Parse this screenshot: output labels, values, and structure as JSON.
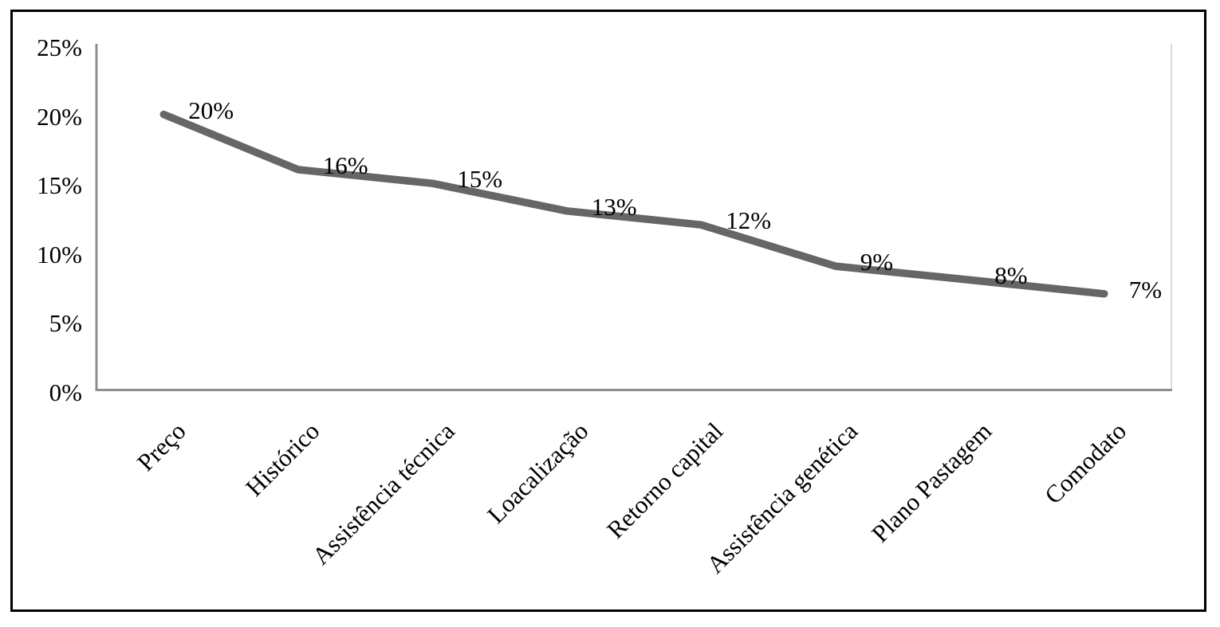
{
  "chart_data": {
    "type": "line",
    "title": "",
    "categories": [
      "Preço",
      "Histórico",
      "Assistência técnica",
      "Loacalização",
      "Retorno capital",
      "Assistência genética",
      "Plano Pastagem",
      "Comodato"
    ],
    "values": [
      20,
      16,
      15,
      13,
      12,
      9,
      8,
      7
    ],
    "data_labels": [
      "20%",
      "16%",
      "15%",
      "13%",
      "12%",
      "9%",
      "8%",
      "7%"
    ],
    "ytick_values": [
      0,
      5,
      10,
      15,
      20,
      25
    ],
    "ytick_labels": [
      "0%",
      "5%",
      "10%",
      "15%",
      "20%",
      "25%"
    ],
    "ylim": [
      0,
      25
    ],
    "xlabel": "",
    "ylabel": "",
    "grid": false,
    "legend": "none",
    "colors": {
      "series_line": "#666666",
      "axis_line": "#8f8f8f",
      "plot_right_border": "#d9d9d9",
      "text": "#000000",
      "frame_border": "#000000",
      "background": "#ffffff"
    }
  }
}
